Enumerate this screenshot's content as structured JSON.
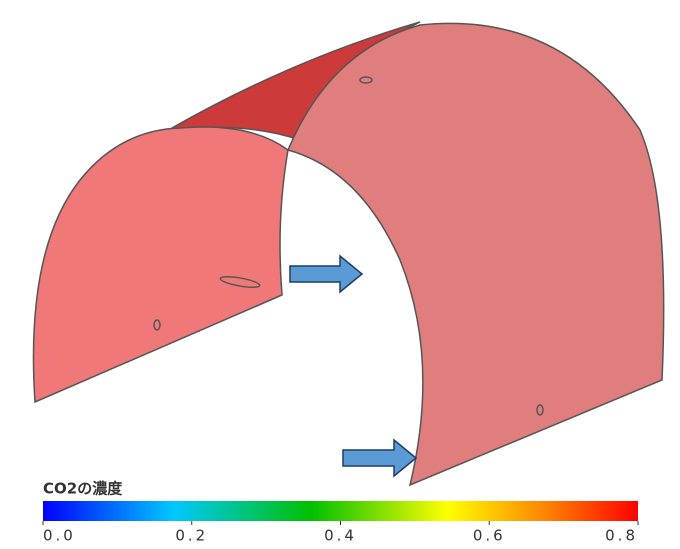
{
  "colorbar": {
    "title": "CO2の濃度",
    "range": [
      0,
      0.8
    ],
    "ticks": [
      {
        "value": 0,
        "label": "0.0"
      },
      0.2,
      0.4,
      0.6,
      0.8
    ]
  }
}
